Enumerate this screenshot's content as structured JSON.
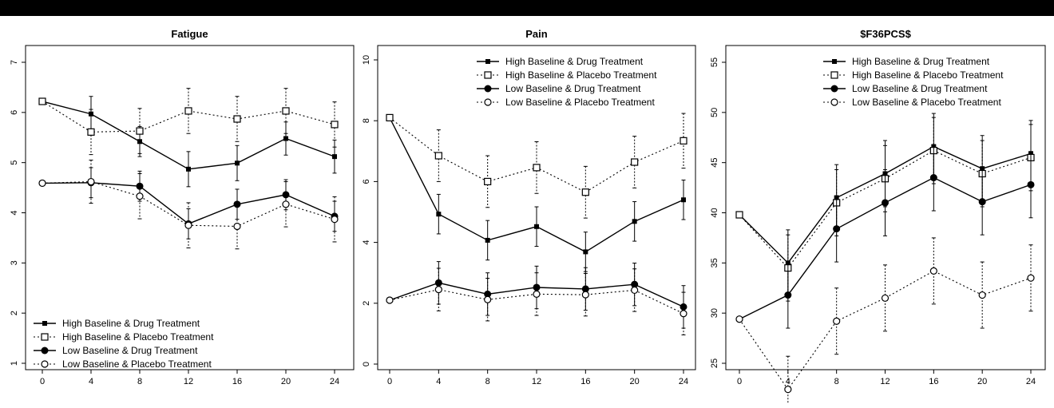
{
  "chart_data": [
    {
      "type": "line",
      "title": "Fatigue",
      "xlabel": "",
      "ylabel": "",
      "x": [
        0,
        4,
        8,
        12,
        16,
        20,
        24
      ],
      "xlim": [
        0,
        24
      ],
      "ylim": [
        1,
        7
      ],
      "xticks": [
        0,
        4,
        8,
        12,
        16,
        20,
        24
      ],
      "yticks": [
        1,
        2,
        3,
        4,
        5,
        6,
        7
      ],
      "legend_position": "bottom-left",
      "series": [
        {
          "name": "High Baseline & Drug Treatment",
          "marker": "filled-square",
          "line": "solid",
          "values": [
            6.22,
            5.97,
            5.42,
            4.87,
            4.99,
            5.48,
            5.12
          ],
          "errors": [
            0.05,
            0.35,
            0.3,
            0.35,
            0.35,
            0.33,
            0.33
          ]
        },
        {
          "name": "High Baseline & Placebo Treatment",
          "marker": "open-square",
          "line": "dotted",
          "values": [
            6.22,
            5.61,
            5.63,
            6.03,
            5.87,
            6.03,
            5.76
          ],
          "errors": [
            0.05,
            0.45,
            0.45,
            0.45,
            0.45,
            0.45,
            0.45
          ]
        },
        {
          "name": "Low Baseline & Drug Treatment",
          "marker": "filled-circle",
          "line": "solid",
          "values": [
            4.59,
            4.6,
            4.53,
            3.78,
            4.17,
            4.36,
            3.93
          ],
          "errors": [
            0.05,
            0.3,
            0.3,
            0.3,
            0.3,
            0.3,
            0.3
          ]
        },
        {
          "name": "Low Baseline & Placebo Treatment",
          "marker": "open-circle",
          "line": "dotted",
          "values": [
            4.59,
            4.62,
            4.33,
            3.75,
            3.73,
            4.17,
            3.87
          ],
          "errors": [
            0.05,
            0.43,
            0.45,
            0.45,
            0.45,
            0.45,
            0.45
          ]
        }
      ]
    },
    {
      "type": "line",
      "title": "Pain",
      "xlabel": "",
      "ylabel": "",
      "x": [
        0,
        4,
        8,
        12,
        16,
        20,
        24
      ],
      "xlim": [
        0,
        24
      ],
      "ylim": [
        0,
        10
      ],
      "xticks": [
        0,
        4,
        8,
        12,
        16,
        20,
        24
      ],
      "yticks": [
        0,
        2,
        4,
        6,
        8,
        10
      ],
      "legend_position": "top-right",
      "series": [
        {
          "name": "High Baseline & Drug Treatment",
          "marker": "filled-square",
          "line": "solid",
          "values": [
            8.1,
            4.93,
            4.07,
            4.52,
            3.69,
            4.69,
            5.4
          ],
          "errors": [
            0.05,
            0.65,
            0.65,
            0.65,
            0.65,
            0.65,
            0.65
          ]
        },
        {
          "name": "High Baseline & Placebo Treatment",
          "marker": "open-square",
          "line": "dotted",
          "values": [
            8.1,
            6.85,
            6.0,
            6.46,
            5.65,
            6.64,
            7.34
          ],
          "errors": [
            0.05,
            0.85,
            0.85,
            0.85,
            0.85,
            0.85,
            0.9
          ]
        },
        {
          "name": "Low Baseline & Drug Treatment",
          "marker": "filled-circle",
          "line": "solid",
          "values": [
            2.1,
            2.67,
            2.3,
            2.52,
            2.47,
            2.62,
            1.88
          ],
          "errors": [
            0.05,
            0.7,
            0.7,
            0.7,
            0.7,
            0.7,
            0.7
          ]
        },
        {
          "name": "Low Baseline & Placebo Treatment",
          "marker": "open-circle",
          "line": "dotted",
          "values": [
            2.1,
            2.45,
            2.12,
            2.3,
            2.28,
            2.43,
            1.66
          ],
          "errors": [
            0.05,
            0.7,
            0.7,
            0.7,
            0.7,
            0.7,
            0.7
          ]
        }
      ]
    },
    {
      "type": "line",
      "title": "$F36PCS$",
      "xlabel": "",
      "ylabel": "",
      "x": [
        0,
        4,
        8,
        12,
        16,
        20,
        24
      ],
      "xlim": [
        0,
        24
      ],
      "ylim": [
        25,
        55
      ],
      "xticks": [
        0,
        4,
        8,
        12,
        16,
        20,
        24
      ],
      "yticks": [
        25,
        30,
        35,
        40,
        45,
        50,
        55
      ],
      "legend_position": "top-right",
      "series": [
        {
          "name": "High Baseline & Drug Treatment",
          "marker": "filled-square",
          "line": "solid",
          "values": [
            39.8,
            35.0,
            41.5,
            43.9,
            46.6,
            44.4,
            45.9
          ],
          "errors": [
            0.1,
            3.3,
            3.3,
            3.3,
            3.3,
            3.3,
            3.3
          ]
        },
        {
          "name": "High Baseline & Placebo Treatment",
          "marker": "open-square",
          "line": "dotted",
          "values": [
            39.8,
            34.5,
            41.0,
            43.4,
            46.2,
            43.9,
            45.5
          ],
          "errors": [
            0.1,
            3.3,
            3.3,
            3.3,
            3.3,
            3.3,
            3.3
          ]
        },
        {
          "name": "Low Baseline & Drug Treatment",
          "marker": "filled-circle",
          "line": "solid",
          "values": [
            29.4,
            31.8,
            38.4,
            41.0,
            43.5,
            41.1,
            42.8
          ],
          "errors": [
            0.1,
            3.3,
            3.3,
            3.3,
            3.3,
            3.3,
            3.3
          ]
        },
        {
          "name": "Low Baseline & Placebo Treatment",
          "marker": "open-circle",
          "line": "dotted",
          "values": [
            29.4,
            22.4,
            29.2,
            31.5,
            34.2,
            31.8,
            33.5
          ],
          "errors": [
            0.1,
            3.3,
            3.3,
            3.3,
            3.3,
            3.3,
            3.3
          ]
        }
      ]
    }
  ]
}
